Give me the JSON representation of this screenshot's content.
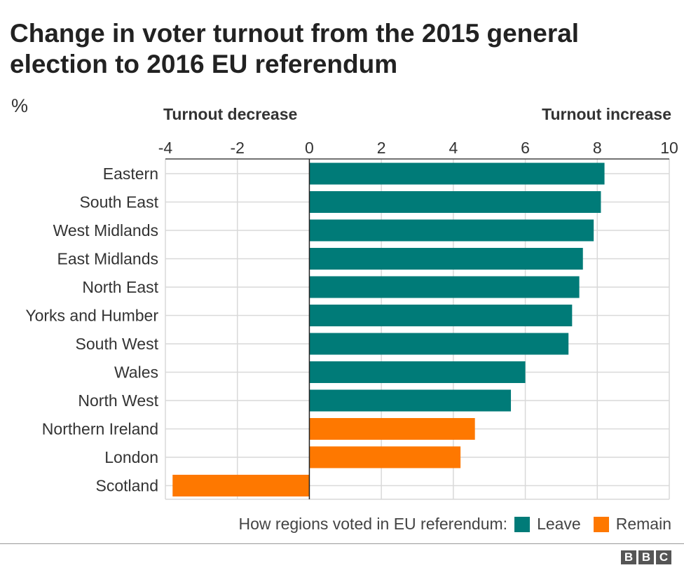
{
  "chart_data": {
    "type": "bar",
    "orientation": "horizontal",
    "title": "Change in voter turnout from the 2015 general election to 2016 EU referendum",
    "unit_label": "%",
    "annotations": {
      "left": "Turnout decrease",
      "right": "Turnout increase"
    },
    "categories": [
      "Eastern",
      "South East",
      "West Midlands",
      "East Midlands",
      "North East",
      "Yorks and Humber",
      "South West",
      "Wales",
      "North West",
      "Northern Ireland",
      "London",
      "Scotland"
    ],
    "values": [
      8.2,
      8.1,
      7.9,
      7.6,
      7.5,
      7.3,
      7.2,
      6.0,
      5.6,
      4.6,
      4.2,
      -3.8
    ],
    "groups": [
      "Leave",
      "Leave",
      "Leave",
      "Leave",
      "Leave",
      "Leave",
      "Leave",
      "Leave",
      "Leave",
      "Remain",
      "Remain",
      "Remain"
    ],
    "xlim": [
      -4,
      10
    ],
    "xticks": [
      "-4",
      "-2",
      "0",
      "2",
      "4",
      "6",
      "8",
      "10"
    ],
    "grid": true,
    "legend": {
      "title": "How regions voted in EU referendum:",
      "placement": "bottom",
      "items": [
        {
          "name": "Leave",
          "color": "#007b78"
        },
        {
          "name": "Remain",
          "color": "#fe7800"
        }
      ]
    }
  },
  "branding": {
    "logo": "BBC"
  }
}
